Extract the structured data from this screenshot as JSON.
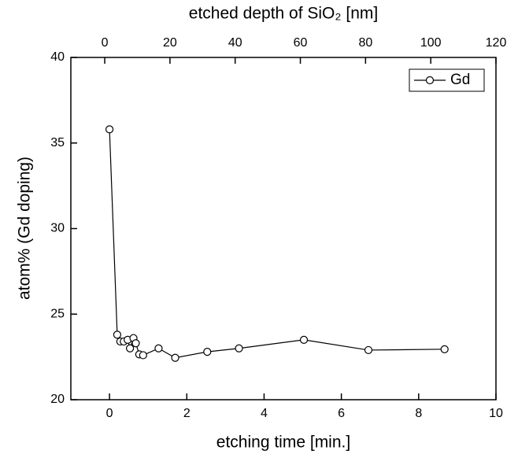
{
  "chart_data": {
    "type": "line",
    "x_label": "etching time [min.]",
    "y_label": "atom% (Gd doping)",
    "x2_label": "etched depth of SiO₂ [nm]",
    "x": [
      0,
      0.2,
      0.28,
      0.37,
      0.47,
      0.53,
      0.62,
      0.68,
      0.77,
      0.87,
      1.27,
      1.7,
      2.53,
      3.35,
      5.03,
      6.7,
      8.67
    ],
    "series": [
      {
        "name": "Gd",
        "color": "#000000",
        "marker": "open-circle",
        "values": [
          35.8,
          23.8,
          23.4,
          23.4,
          23.5,
          23.0,
          23.6,
          23.3,
          22.65,
          22.6,
          23.0,
          22.45,
          22.8,
          23.0,
          23.5,
          22.9,
          22.95
        ]
      }
    ],
    "xlim": [
      -1,
      10
    ],
    "xticks": [
      0,
      2,
      4,
      6,
      8,
      10
    ],
    "ylim": [
      20,
      40
    ],
    "yticks": [
      20,
      25,
      30,
      35,
      40
    ],
    "x2lim": [
      -10.4,
      120
    ],
    "x2ticks": [
      0,
      20,
      40,
      60,
      80,
      100,
      120
    ],
    "grid": false,
    "legend": "upper right"
  }
}
